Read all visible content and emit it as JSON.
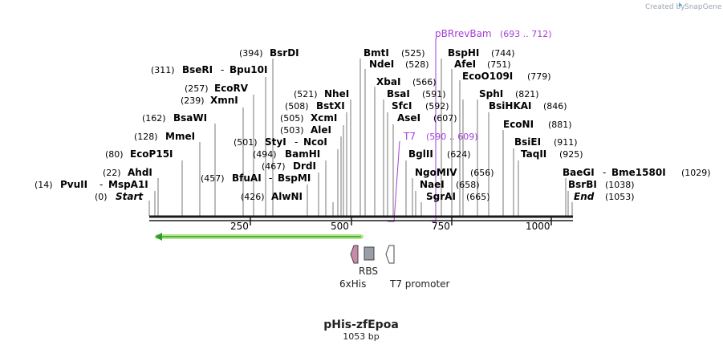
{
  "credit": "Created by",
  "brand": "SnapGene",
  "map": {
    "title": "pHis-zfEpoa",
    "length_label": "1053 bp",
    "length": 1053
  },
  "ruler_ticks": [
    "250",
    "500",
    "750",
    "1000"
  ],
  "enzymes": [
    {
      "name": "BsrDI",
      "pos": "(394)"
    },
    {
      "name": "BseRI",
      "pos": "(311)",
      "name2": "Bpu10I"
    },
    {
      "name": "EcoRV",
      "pos": "(257)"
    },
    {
      "name": "XmnI",
      "pos": "(239)"
    },
    {
      "name": "BsaWI",
      "pos": "(162)"
    },
    {
      "name": "MmeI",
      "pos": "(128)"
    },
    {
      "name": "EcoP15I",
      "pos": "(80)"
    },
    {
      "name": "AhdI",
      "pos": "(22)"
    },
    {
      "name": "PvuII",
      "pos": "(14)",
      "name2": "MspA1I"
    },
    {
      "name": "Start",
      "pos": "(0)"
    },
    {
      "name": "NheI",
      "pos": "(521)"
    },
    {
      "name": "BstXI",
      "pos": "(508)"
    },
    {
      "name": "XcmI",
      "pos": "(505)"
    },
    {
      "name": "AleI",
      "pos": "(503)"
    },
    {
      "name": "StyI",
      "pos": "(501)",
      "name2": "NcoI"
    },
    {
      "name": "BamHI",
      "pos": "(494)"
    },
    {
      "name": "DrdI",
      "pos": "(467)"
    },
    {
      "name": "BfuAI",
      "pos": "(457)",
      "name2": "BspMI"
    },
    {
      "name": "AlwNI",
      "pos": "(426)"
    },
    {
      "name": "BmtI",
      "pos": "(525)"
    },
    {
      "name": "NdeI",
      "pos": "(528)"
    },
    {
      "name": "XbaI",
      "pos": "(566)"
    },
    {
      "name": "BsaI",
      "pos": "(591)"
    },
    {
      "name": "SfcI",
      "pos": "(592)"
    },
    {
      "name": "AseI",
      "pos": "(607)"
    },
    {
      "name": "BglII",
      "pos": "(624)"
    },
    {
      "name": "NgoMIV",
      "pos": "(656)"
    },
    {
      "name": "NaeI",
      "pos": "(658)"
    },
    {
      "name": "SgrAI",
      "pos": "(665)"
    },
    {
      "name": "BspHI",
      "pos": "(744)"
    },
    {
      "name": "AfeI",
      "pos": "(751)"
    },
    {
      "name": "EcoO109I",
      "pos": "(779)"
    },
    {
      "name": "SphI",
      "pos": "(821)"
    },
    {
      "name": "BsiHKAI",
      "pos": "(846)"
    },
    {
      "name": "EcoNI",
      "pos": "(881)"
    },
    {
      "name": "BsiEI",
      "pos": "(911)"
    },
    {
      "name": "TaqII",
      "pos": "(925)"
    },
    {
      "name": "BaeGI",
      "pos": "(1029)",
      "name2": "Bme1580I"
    },
    {
      "name": "BsrBI",
      "pos": "(1038)"
    },
    {
      "name": "End",
      "pos": "(1053)"
    }
  ],
  "primers": [
    {
      "name": "pBRrevBam",
      "range": "(693 .. 712)"
    },
    {
      "name": "T7",
      "range": "(590 .. 609)"
    }
  ],
  "features": [
    {
      "name": "6xHis",
      "type": "arrow"
    },
    {
      "name": "RBS",
      "type": "box"
    },
    {
      "name": "T7 promoter",
      "type": "arrow"
    }
  ],
  "colors": {
    "backbone": "#1a1a1a",
    "primer": "#a33fd6",
    "orf": "#2f9e2f",
    "his_tag": "#c88aa8",
    "rbs": "#9a9ea6",
    "credit": "#9aa3ad"
  }
}
